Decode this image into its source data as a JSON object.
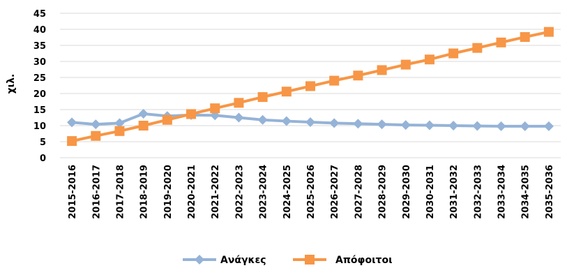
{
  "chart_data": {
    "type": "line",
    "title": "",
    "xlabel": "",
    "ylabel": "χιλ.",
    "ylim": [
      0,
      45
    ],
    "yticks": [
      0,
      5,
      10,
      15,
      20,
      25,
      30,
      35,
      40,
      45
    ],
    "grid": true,
    "legend_position": "bottom",
    "categories": [
      "2015-2016",
      "2016-2017",
      "2017-2018",
      "2018-2019",
      "2019-2020",
      "2020-2021",
      "2021-2022",
      "2022-2023",
      "2023-2024",
      "2024-2025",
      "2025-2026",
      "2026-2027",
      "2027-2028",
      "2028-2029",
      "2029-2030",
      "2030-2031",
      "2031-2032",
      "2032-2033",
      "2033-2034",
      "2034-2035",
      "2035-2036"
    ],
    "series": [
      {
        "name": "Ανάγκες",
        "color": "#95b3d7",
        "marker": "diamond",
        "values": [
          11.0,
          10.4,
          10.8,
          13.7,
          13.0,
          13.3,
          13.2,
          12.5,
          11.8,
          11.4,
          11.1,
          10.8,
          10.6,
          10.4,
          10.2,
          10.1,
          10.0,
          9.9,
          9.8,
          9.8,
          9.8
        ]
      },
      {
        "name": "Απόφοιτοι",
        "color": "#f79646",
        "marker": "square",
        "values": [
          5.2,
          6.8,
          8.3,
          10.0,
          11.8,
          13.6,
          15.4,
          17.1,
          18.9,
          20.6,
          22.3,
          24.0,
          25.6,
          27.3,
          29.0,
          30.6,
          32.5,
          34.2,
          35.9,
          37.6,
          39.2
        ]
      }
    ]
  }
}
